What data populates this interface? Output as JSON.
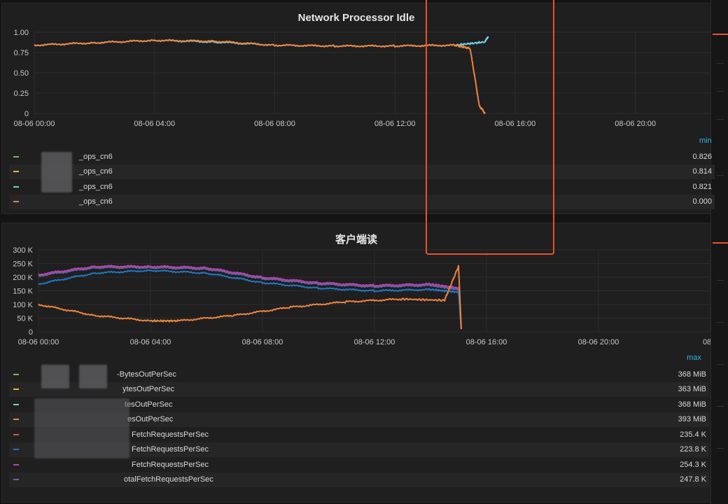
{
  "panel1": {
    "title": "Network Processor Idle",
    "legend_header": "min",
    "legend": [
      {
        "name": "_ops_cn6",
        "value": "0.826",
        "color": "#7eb26d"
      },
      {
        "name": "_ops_cn6",
        "value": "0.814",
        "color": "#eab839"
      },
      {
        "name": "_ops_cn6",
        "value": "0.821",
        "color": "#6ed0e0"
      },
      {
        "name": "_ops_cn6",
        "value": "0.000",
        "color": "#ef843c"
      }
    ]
  },
  "panel2": {
    "title": "客户端读",
    "legend_header": "max",
    "legend": [
      {
        "name": "-BytesOutPerSec",
        "value": "368 MiB",
        "color": "#7eb26d"
      },
      {
        "name": "ytesOutPerSec",
        "value": "363 MiB",
        "color": "#eab839"
      },
      {
        "name": "tesOutPerSec",
        "value": "368 MiB",
        "color": "#6ed0e0"
      },
      {
        "name": "esOutPerSec",
        "value": "393 MiB",
        "color": "#ef843c"
      },
      {
        "name": "FetchRequestsPerSec",
        "value": "235.4 K",
        "color": "#e24d42"
      },
      {
        "name": "FetchRequestsPerSec",
        "value": "223.8 K",
        "color": "#1f78c1"
      },
      {
        "name": "FetchRequestsPerSec",
        "value": "254.3 K",
        "color": "#ba43a9"
      },
      {
        "name": "otalFetchRequestsPerSec",
        "value": "247.8 K",
        "color": "#705da0"
      }
    ]
  },
  "chart_data": [
    {
      "type": "line",
      "title": "Network Processor Idle",
      "x_ticks": [
        "08-06 00:00",
        "08-06 04:00",
        "08-06 08:00",
        "08-06 12:00",
        "08-06 16:00",
        "08-06 20:00"
      ],
      "y_ticks": [
        "0",
        "0.25",
        "0.50",
        "0.75",
        "1.00"
      ],
      "ylim": [
        0,
        1.0
      ],
      "xlim_hours": [
        0,
        22.5
      ],
      "grid": true,
      "series": [
        {
          "color": "#6ed0e0",
          "x": [
            0,
            2,
            4,
            6,
            8,
            10,
            12,
            14,
            15,
            15.1
          ],
          "y": [
            0.84,
            0.87,
            0.9,
            0.88,
            0.84,
            0.83,
            0.83,
            0.84,
            0.88,
            0.95
          ]
        },
        {
          "color": "#ef843c",
          "x": [
            0,
            2,
            4,
            6,
            8,
            10,
            12,
            14,
            14.5,
            14.7,
            14.8,
            15.0
          ],
          "y": [
            0.84,
            0.87,
            0.9,
            0.89,
            0.84,
            0.83,
            0.83,
            0.84,
            0.8,
            0.35,
            0.1,
            0.0
          ]
        }
      ]
    },
    {
      "type": "line",
      "title": "客户端读",
      "x_ticks": [
        "08-06 00:00",
        "08-06 04:00",
        "08-06 08:00",
        "08-06 12:00",
        "08-06 16:00",
        "08-06 20:00",
        "08-0"
      ],
      "y_ticks": [
        "0",
        "50 K",
        "100 K",
        "150 K",
        "200 K",
        "250 K",
        "300 K"
      ],
      "ylim": [
        0,
        300000
      ],
      "xlim_hours": [
        0,
        24
      ],
      "grid": true,
      "series": [
        {
          "color": "#ba43a9",
          "x": [
            0,
            2,
            4,
            6,
            8,
            10,
            12,
            14,
            15,
            15.1
          ],
          "y": [
            210000,
            240000,
            240000,
            235000,
            200000,
            180000,
            170000,
            175000,
            160000,
            10000
          ]
        },
        {
          "color": "#705da0",
          "x": [
            0,
            2,
            4,
            6,
            8,
            10,
            12,
            14,
            15,
            15.1
          ],
          "y": [
            205000,
            235000,
            235000,
            230000,
            195000,
            175000,
            165000,
            170000,
            155000,
            10000
          ]
        },
        {
          "color": "#1f78c1",
          "x": [
            0,
            2,
            4,
            6,
            8,
            10,
            12,
            14,
            15,
            15.1
          ],
          "y": [
            175000,
            215000,
            225000,
            215000,
            180000,
            160000,
            150000,
            155000,
            145000,
            10000
          ]
        },
        {
          "color": "#ef843c",
          "x": [
            0,
            2,
            4,
            5,
            7,
            9,
            11,
            13,
            14.5,
            15,
            15.1
          ],
          "y": [
            100000,
            60000,
            40000,
            40000,
            60000,
            90000,
            110000,
            120000,
            115000,
            240000,
            10000
          ]
        }
      ]
    }
  ]
}
